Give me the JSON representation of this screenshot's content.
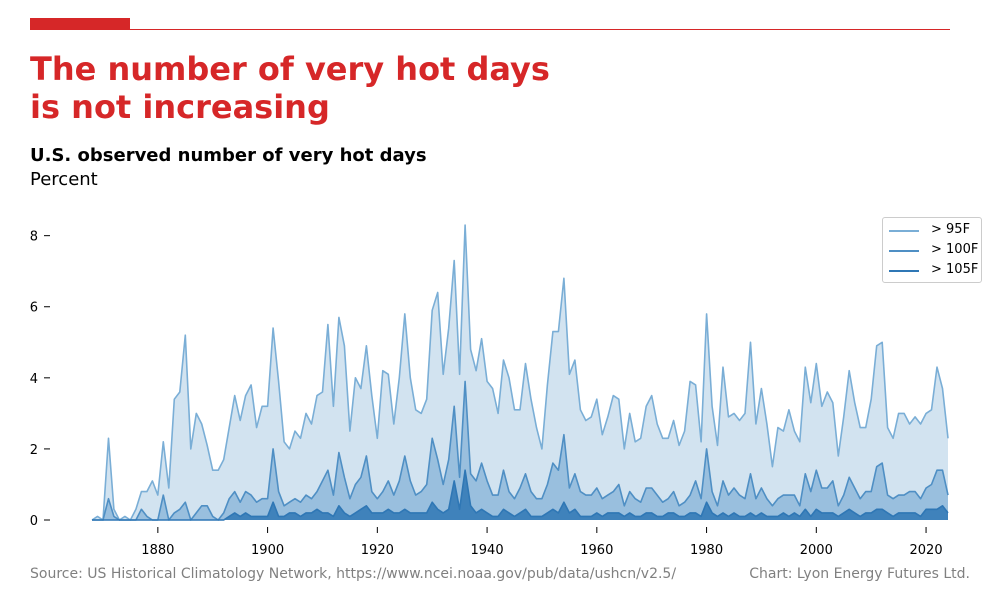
{
  "header": {
    "title_line1": "The number of very hot days",
    "title_line2": "is not increasing",
    "subtitle": "U.S. observed number of very hot days",
    "unit": "Percent"
  },
  "footer": {
    "source": "Source: US Historical Climatology Network, https://www.ncei.noaa.gov/pub/data/ushcn/v2.5/",
    "credit": "Chart: Lyon Energy Futures Ltd."
  },
  "colors": {
    "accent": "#d62728",
    "series_95": "#7aaed6",
    "series_100": "#4f8fc4",
    "series_105": "#2f77b5",
    "fill_95": "#d2e3f0",
    "fill_100": "#8fb8da",
    "fill_105": "#2f77b5"
  },
  "chart_data": {
    "type": "area",
    "xlabel": "",
    "ylabel": "",
    "xlim": [
      1868,
      2024
    ],
    "ylim": [
      0,
      8.3
    ],
    "x_ticks": [
      1880,
      1900,
      1920,
      1940,
      1960,
      1980,
      2000,
      2020
    ],
    "y_ticks": [
      0,
      2,
      4,
      6,
      8
    ],
    "grid": false,
    "legend_position": "top-right",
    "x": [
      1868,
      1869,
      1870,
      1871,
      1872,
      1873,
      1874,
      1875,
      1876,
      1877,
      1878,
      1879,
      1880,
      1881,
      1882,
      1883,
      1884,
      1885,
      1886,
      1887,
      1888,
      1889,
      1890,
      1891,
      1892,
      1893,
      1894,
      1895,
      1896,
      1897,
      1898,
      1899,
      1900,
      1901,
      1902,
      1903,
      1904,
      1905,
      1906,
      1907,
      1908,
      1909,
      1910,
      1911,
      1912,
      1913,
      1914,
      1915,
      1916,
      1917,
      1918,
      1919,
      1920,
      1921,
      1922,
      1923,
      1924,
      1925,
      1926,
      1927,
      1928,
      1929,
      1930,
      1931,
      1932,
      1933,
      1934,
      1935,
      1936,
      1937,
      1938,
      1939,
      1940,
      1941,
      1942,
      1943,
      1944,
      1945,
      1946,
      1947,
      1948,
      1949,
      1950,
      1951,
      1952,
      1953,
      1954,
      1955,
      1956,
      1957,
      1958,
      1959,
      1960,
      1961,
      1962,
      1963,
      1964,
      1965,
      1966,
      1967,
      1968,
      1969,
      1970,
      1971,
      1972,
      1973,
      1974,
      1975,
      1976,
      1977,
      1978,
      1979,
      1980,
      1981,
      1982,
      1983,
      1984,
      1985,
      1986,
      1987,
      1988,
      1989,
      1990,
      1991,
      1992,
      1993,
      1994,
      1995,
      1996,
      1997,
      1998,
      1999,
      2000,
      2001,
      2002,
      2003,
      2004,
      2005,
      2006,
      2007,
      2008,
      2009,
      2010,
      2011,
      2012,
      2013,
      2014,
      2015,
      2016,
      2017,
      2018,
      2019,
      2020,
      2021,
      2022,
      2023,
      2024
    ],
    "series": [
      {
        "name": "> 95F",
        "values": [
          0.0,
          0.1,
          0.0,
          2.3,
          0.3,
          0.0,
          0.1,
          0.0,
          0.3,
          0.8,
          0.8,
          1.1,
          0.7,
          2.2,
          0.9,
          3.4,
          3.6,
          5.2,
          2.0,
          3.0,
          2.7,
          2.1,
          1.4,
          1.4,
          1.7,
          2.6,
          3.5,
          2.8,
          3.5,
          3.8,
          2.6,
          3.2,
          3.2,
          5.4,
          3.9,
          2.2,
          2.0,
          2.5,
          2.3,
          3.0,
          2.7,
          3.5,
          3.6,
          5.5,
          3.2,
          5.7,
          4.9,
          2.5,
          4.0,
          3.7,
          4.9,
          3.5,
          2.3,
          4.2,
          4.1,
          2.7,
          4.0,
          5.8,
          4.0,
          3.1,
          3.0,
          3.4,
          5.9,
          6.4,
          4.1,
          5.4,
          7.3,
          4.1,
          8.3,
          4.8,
          4.2,
          5.1,
          3.9,
          3.7,
          3.0,
          4.5,
          4.0,
          3.1,
          3.1,
          4.4,
          3.4,
          2.6,
          2.0,
          3.8,
          5.3,
          5.3,
          6.8,
          4.1,
          4.5,
          3.1,
          2.8,
          2.9,
          3.4,
          2.4,
          2.9,
          3.5,
          3.4,
          2.0,
          3.0,
          2.2,
          2.3,
          3.2,
          3.5,
          2.7,
          2.3,
          2.3,
          2.8,
          2.1,
          2.5,
          3.9,
          3.8,
          2.2,
          5.8,
          3.2,
          2.1,
          4.3,
          2.9,
          3.0,
          2.8,
          3.0,
          5.0,
          2.7,
          3.7,
          2.7,
          1.5,
          2.6,
          2.5,
          3.1,
          2.5,
          2.2,
          4.3,
          3.3,
          4.4,
          3.2,
          3.6,
          3.3,
          1.8,
          2.9,
          4.2,
          3.3,
          2.6,
          2.6,
          3.4,
          4.9,
          5.0,
          2.6,
          2.3,
          3.0,
          3.0,
          2.7,
          2.9,
          2.7,
          3.0,
          3.1,
          4.3,
          3.7,
          2.3
        ]
      },
      {
        "name": "> 100F",
        "values": [
          0.0,
          0.0,
          0.0,
          0.6,
          0.1,
          0.0,
          0.0,
          0.0,
          0.0,
          0.3,
          0.1,
          0.0,
          0.0,
          0.7,
          0.0,
          0.2,
          0.3,
          0.5,
          0.0,
          0.2,
          0.4,
          0.4,
          0.1,
          0.0,
          0.2,
          0.6,
          0.8,
          0.5,
          0.8,
          0.7,
          0.5,
          0.6,
          0.6,
          2.0,
          0.8,
          0.4,
          0.5,
          0.6,
          0.5,
          0.7,
          0.6,
          0.8,
          1.1,
          1.4,
          0.7,
          1.9,
          1.2,
          0.6,
          1.0,
          1.2,
          1.8,
          0.8,
          0.6,
          0.8,
          1.1,
          0.7,
          1.1,
          1.8,
          1.1,
          0.7,
          0.8,
          1.0,
          2.3,
          1.7,
          1.0,
          1.7,
          3.2,
          1.2,
          3.9,
          1.3,
          1.1,
          1.6,
          1.1,
          0.7,
          0.7,
          1.4,
          0.8,
          0.6,
          0.9,
          1.3,
          0.8,
          0.6,
          0.6,
          1.0,
          1.6,
          1.4,
          2.4,
          0.9,
          1.3,
          0.8,
          0.7,
          0.7,
          0.9,
          0.6,
          0.7,
          0.8,
          1.0,
          0.4,
          0.8,
          0.6,
          0.5,
          0.9,
          0.9,
          0.7,
          0.5,
          0.6,
          0.8,
          0.4,
          0.5,
          0.7,
          1.1,
          0.6,
          2.0,
          0.8,
          0.4,
          1.1,
          0.7,
          0.9,
          0.7,
          0.6,
          1.3,
          0.6,
          0.9,
          0.6,
          0.4,
          0.6,
          0.7,
          0.7,
          0.7,
          0.4,
          1.3,
          0.8,
          1.4,
          0.9,
          0.9,
          1.1,
          0.4,
          0.7,
          1.2,
          0.9,
          0.6,
          0.8,
          0.8,
          1.5,
          1.6,
          0.7,
          0.6,
          0.7,
          0.7,
          0.8,
          0.8,
          0.6,
          0.9,
          1.0,
          1.4,
          1.4,
          0.7
        ]
      },
      {
        "name": "> 105F",
        "values": [
          0.0,
          0.0,
          0.0,
          0.0,
          0.0,
          0.0,
          0.0,
          0.0,
          0.0,
          0.0,
          0.0,
          0.0,
          0.0,
          0.0,
          0.0,
          0.0,
          0.0,
          0.0,
          0.0,
          0.0,
          0.0,
          0.0,
          0.0,
          0.0,
          0.0,
          0.1,
          0.2,
          0.1,
          0.2,
          0.1,
          0.1,
          0.1,
          0.1,
          0.5,
          0.1,
          0.1,
          0.2,
          0.2,
          0.1,
          0.2,
          0.2,
          0.3,
          0.2,
          0.2,
          0.1,
          0.4,
          0.2,
          0.1,
          0.2,
          0.3,
          0.4,
          0.2,
          0.2,
          0.2,
          0.3,
          0.2,
          0.2,
          0.3,
          0.2,
          0.2,
          0.2,
          0.2,
          0.5,
          0.3,
          0.2,
          0.3,
          1.1,
          0.3,
          1.4,
          0.4,
          0.2,
          0.3,
          0.2,
          0.1,
          0.1,
          0.3,
          0.2,
          0.1,
          0.2,
          0.3,
          0.1,
          0.1,
          0.1,
          0.2,
          0.3,
          0.2,
          0.5,
          0.2,
          0.3,
          0.1,
          0.1,
          0.1,
          0.2,
          0.1,
          0.2,
          0.2,
          0.2,
          0.1,
          0.2,
          0.1,
          0.1,
          0.2,
          0.2,
          0.1,
          0.1,
          0.2,
          0.2,
          0.1,
          0.1,
          0.2,
          0.2,
          0.1,
          0.5,
          0.2,
          0.1,
          0.2,
          0.1,
          0.2,
          0.1,
          0.1,
          0.2,
          0.1,
          0.2,
          0.1,
          0.1,
          0.1,
          0.2,
          0.1,
          0.2,
          0.1,
          0.3,
          0.1,
          0.3,
          0.2,
          0.2,
          0.2,
          0.1,
          0.2,
          0.3,
          0.2,
          0.1,
          0.2,
          0.2,
          0.3,
          0.3,
          0.2,
          0.1,
          0.2,
          0.2,
          0.2,
          0.2,
          0.1,
          0.3,
          0.3,
          0.3,
          0.4,
          0.2
        ]
      }
    ]
  }
}
